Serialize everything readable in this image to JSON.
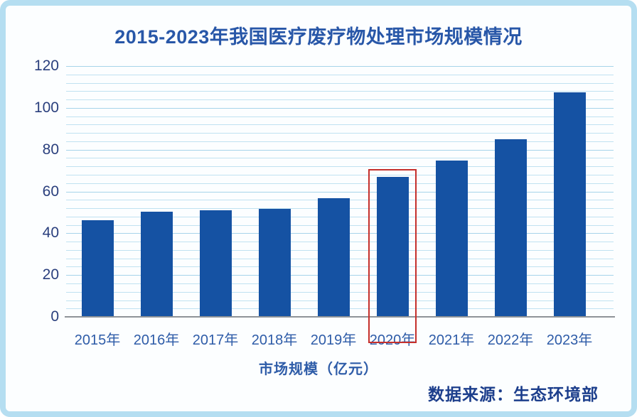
{
  "chart_data": {
    "type": "bar",
    "title": "2015-2023年我国医疗废疗物处理市场规模情况",
    "categories": [
      "2015年",
      "2016年",
      "2017年",
      "2018年",
      "2019年",
      "2020年",
      "2021年",
      "2022年",
      "2023年"
    ],
    "values": [
      46,
      50,
      50.5,
      51.5,
      56.5,
      66.5,
      74.5,
      84.5,
      107
    ],
    "xlabel": "市场规模（亿元）",
    "ylabel": "",
    "ylim": [
      0,
      120
    ],
    "y_ticks": [
      0,
      20,
      40,
      60,
      80,
      100,
      120
    ],
    "minor_grid_step": 4,
    "grid": "on",
    "legend": "none",
    "highlight": {
      "category": "2020年",
      "note": "red outline around 2020 bar and label"
    }
  },
  "source_note": "数据来源：生态环境部",
  "colors": {
    "bar": "#1552a3",
    "minor_grid": "#c0e2f1",
    "major_grid": "#a6d4ea",
    "axis_line": "#8e9398",
    "title_text": "#2857a8",
    "y_tick_text": "#2a3f7d",
    "x_tick_text": "#2e5ca8",
    "source_text": "#1c3e8c",
    "highlight_box": "#c5302c",
    "frame_border": "#b5def1",
    "background": "#fcfeff"
  }
}
